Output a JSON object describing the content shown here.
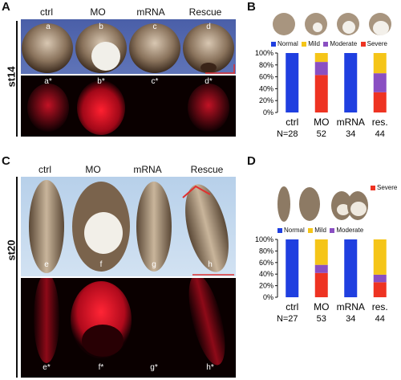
{
  "panels": {
    "A": {
      "label": "A",
      "cols": [
        "ctrl",
        "MO",
        "mRNA",
        "Rescue"
      ],
      "stage": "st14",
      "top_labels": [
        "a",
        "b",
        "c",
        "d"
      ],
      "bottom_labels": [
        "a*",
        "b*",
        "c*",
        "d*"
      ]
    },
    "B": {
      "label": "B"
    },
    "C": {
      "label": "C",
      "cols": [
        "ctrl",
        "MO",
        "mRNA",
        "Rescue"
      ],
      "stage": "st20",
      "top_labels": [
        "e",
        "f",
        "g",
        "h"
      ],
      "bottom_labels": [
        "e*",
        "f*",
        "g*",
        "h*"
      ]
    },
    "D": {
      "label": "D"
    }
  },
  "chart_data": [
    {
      "type": "bar",
      "panel": "B",
      "legend": [
        "Normal",
        "Mild",
        "Moderate",
        "Severe"
      ],
      "colors": {
        "Normal": "#1f3fe0",
        "Mild": "#f5c518",
        "Moderate": "#8a4fc2",
        "Severe": "#ee3322"
      },
      "categories": [
        "ctrl",
        "MO",
        "mRNA",
        "res."
      ],
      "n": [
        "N=28",
        "52",
        "34",
        "44"
      ],
      "yticks": [
        "0%",
        "20%",
        "40%",
        "60%",
        "80%",
        "100%"
      ],
      "stacks": [
        {
          "Normal": 100,
          "Mild": 0,
          "Moderate": 0,
          "Severe": 0
        },
        {
          "Normal": 0,
          "Mild": 15,
          "Moderate": 22,
          "Severe": 63
        },
        {
          "Normal": 100,
          "Mild": 0,
          "Moderate": 0,
          "Severe": 0
        },
        {
          "Normal": 0,
          "Mild": 34,
          "Moderate": 32,
          "Severe": 34
        }
      ]
    },
    {
      "type": "bar",
      "panel": "D",
      "legend": [
        "Severe",
        "Normal",
        "Mild",
        "Moderate"
      ],
      "colors": {
        "Normal": "#1f3fe0",
        "Mild": "#f5c518",
        "Moderate": "#8a4fc2",
        "Severe": "#ee3322"
      },
      "categories": [
        "ctrl",
        "MO",
        "mRNA",
        "res."
      ],
      "n": [
        "N=27",
        "53",
        "34",
        "44"
      ],
      "yticks": [
        "0%",
        "20%",
        "40%",
        "60%",
        "80%",
        "100%"
      ],
      "stacks": [
        {
          "Normal": 100,
          "Mild": 0,
          "Moderate": 0,
          "Severe": 0
        },
        {
          "Normal": 0,
          "Mild": 44,
          "Moderate": 14,
          "Severe": 42
        },
        {
          "Normal": 100,
          "Mild": 0,
          "Moderate": 0,
          "Severe": 0
        },
        {
          "Normal": 0,
          "Mild": 61,
          "Moderate": 13,
          "Severe": 26
        }
      ]
    }
  ]
}
